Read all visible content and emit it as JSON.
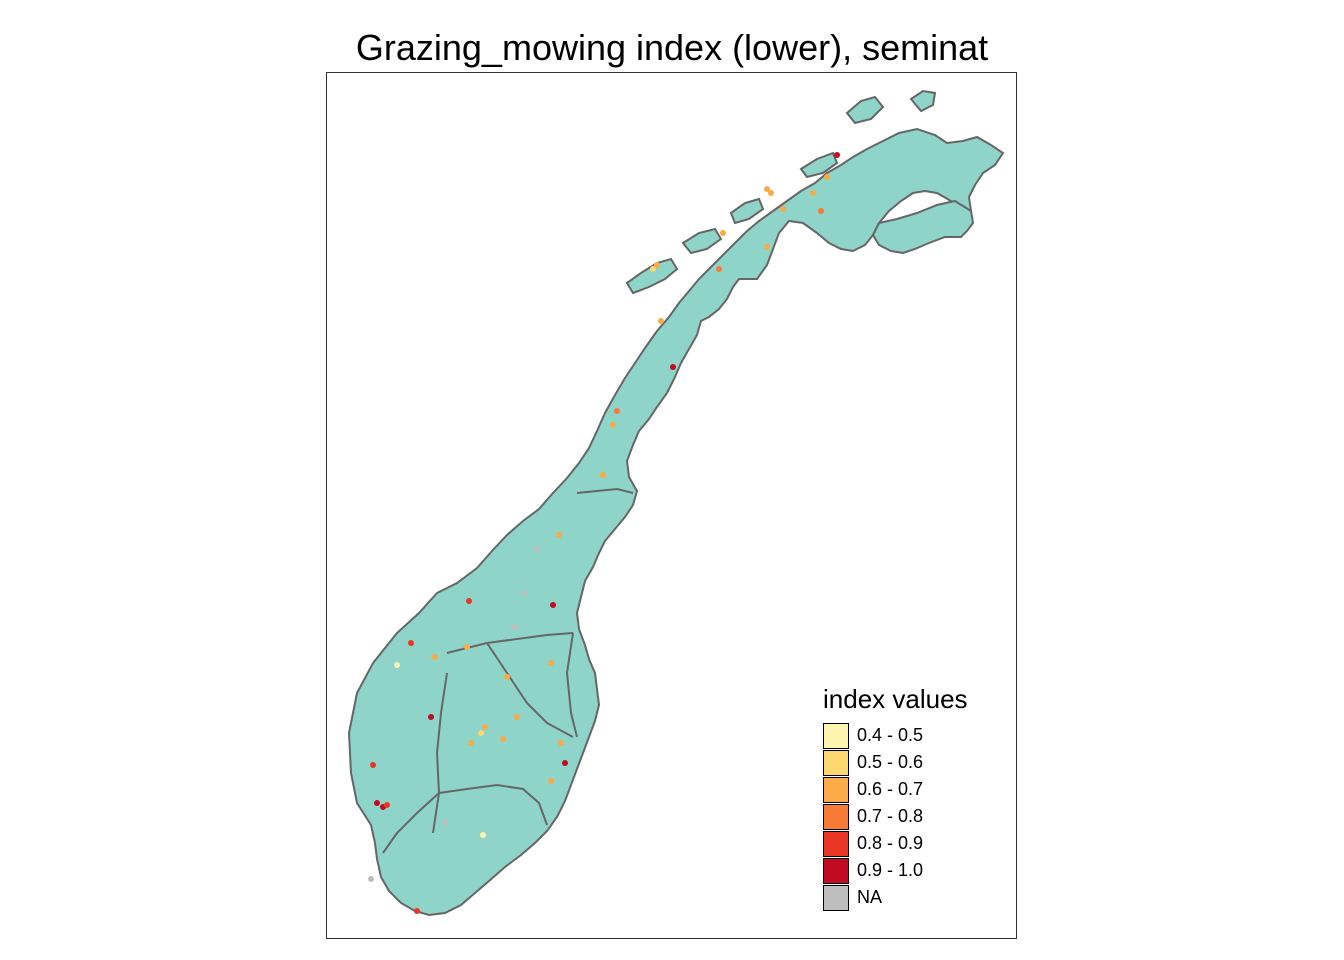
{
  "title": "Grazing_mowing index (lower), seminat",
  "legend": {
    "title": "index values",
    "items": [
      {
        "label": "0.4 - 0.5",
        "color": "#FFF3B0"
      },
      {
        "label": "0.5 - 0.6",
        "color": "#FDD870"
      },
      {
        "label": "0.6 - 0.7",
        "color": "#FBAA49"
      },
      {
        "label": "0.7 - 0.8",
        "color": "#F87B35"
      },
      {
        "label": "0.8 - 0.9",
        "color": "#E83524"
      },
      {
        "label": "0.9 - 1.0",
        "color": "#C20A23"
      },
      {
        "label": "NA",
        "color": "#BEBEBE"
      }
    ]
  },
  "colors": {
    "land": "#8ED4C9",
    "border": "#666666"
  }
}
